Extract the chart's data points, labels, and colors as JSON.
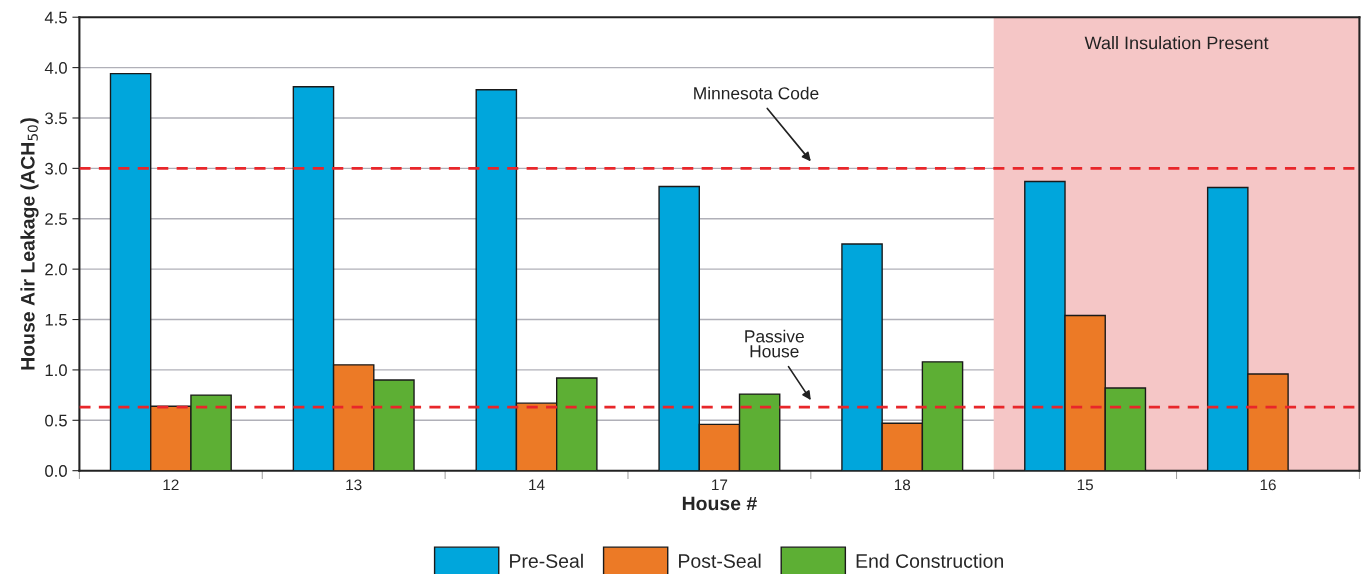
{
  "chart_data": {
    "type": "bar",
    "xlabel": "House #",
    "ylabel": "House Air Leakage (ACH$_{50}$)",
    "categories": [
      "12",
      "13",
      "14",
      "17",
      "18",
      "15",
      "16"
    ],
    "series": [
      {
        "name": "Pre-Seal",
        "color": "#00a6dc",
        "values": [
          3.94,
          3.81,
          3.78,
          2.82,
          2.25,
          2.87,
          2.81
        ]
      },
      {
        "name": "Post-Seal",
        "color": "#ec7a26",
        "values": [
          0.64,
          1.05,
          0.67,
          0.46,
          0.47,
          1.54,
          0.96
        ]
      },
      {
        "name": "End Construction",
        "color": "#5daf34",
        "values": [
          0.75,
          0.9,
          0.92,
          0.76,
          1.08,
          0.82,
          null
        ]
      }
    ],
    "ylim": [
      0,
      4.5
    ],
    "yticks": [
      {
        "value": 0,
        "label": "0.0"
      },
      {
        "value": 0.5,
        "label": "0.5"
      },
      {
        "value": 1,
        "label": "1.0"
      },
      {
        "value": 1.5,
        "label": "1.5"
      },
      {
        "value": 2,
        "label": "2.0"
      },
      {
        "value": 2.5,
        "label": "2.5"
      },
      {
        "value": 3,
        "label": "3.0"
      },
      {
        "value": 3.5,
        "label": "3.5"
      },
      {
        "value": 4,
        "label": "4.0"
      },
      {
        "value": 4.5,
        "label": "4.5"
      }
    ],
    "ref_lines": [
      {
        "axis": "y",
        "value": 3.0,
        "label": "Minnesota Code",
        "color": "#e8262a",
        "line_style": "dashed"
      },
      {
        "axis": "y",
        "value": 0.63,
        "label": "Passive\nHouse",
        "color": "#e8262a",
        "line_style": "dashed"
      }
    ],
    "bands": [
      {
        "axis": "x",
        "from": "15",
        "to": "16",
        "label": "Wall Insulation Present",
        "color": "#f5c6c6"
      }
    ],
    "grid": "y",
    "legend": "bottom"
  }
}
